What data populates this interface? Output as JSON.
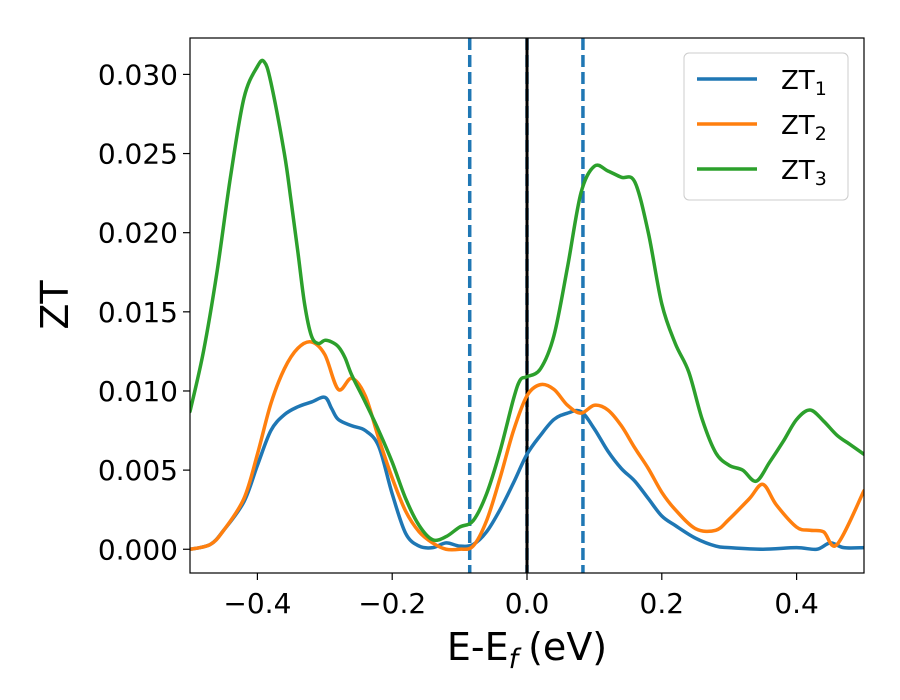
{
  "chart_data": {
    "type": "line",
    "xlabel": "E-E",
    "xlabel_sub": "f",
    "xlabel_unit": "(eV)",
    "ylabel": "ZT",
    "xlim": [
      -0.5,
      0.5
    ],
    "ylim": [
      -0.0015,
      0.0323
    ],
    "xticks": [
      -0.4,
      -0.2,
      0.0,
      0.2,
      0.4
    ],
    "xtick_labels": [
      "−0.4",
      "−0.2",
      "0.0",
      "0.2",
      "0.4"
    ],
    "yticks": [
      0.0,
      0.005,
      0.01,
      0.015,
      0.02,
      0.025,
      0.03
    ],
    "ytick_labels": [
      "0.000",
      "0.005",
      "0.010",
      "0.015",
      "0.020",
      "0.025",
      "0.030"
    ],
    "grid": false,
    "legend_position": "top-right",
    "vlines": [
      {
        "x": -0.085,
        "style": "dashed",
        "color": "#1f77b4"
      },
      {
        "x": 0.0,
        "style": "dashed",
        "color": "#1f77b4"
      },
      {
        "x": 0.0,
        "style": "solid",
        "color": "#000000"
      },
      {
        "x": 0.083,
        "style": "dashed",
        "color": "#1f77b4"
      }
    ],
    "series": [
      {
        "name": "ZT",
        "subscript": "1",
        "color": "#1f77b4",
        "x": [
          -0.5,
          -0.47,
          -0.45,
          -0.42,
          -0.4,
          -0.38,
          -0.36,
          -0.34,
          -0.32,
          -0.3,
          -0.29,
          -0.28,
          -0.26,
          -0.24,
          -0.22,
          -0.2,
          -0.18,
          -0.16,
          -0.14,
          -0.12,
          -0.1,
          -0.08,
          -0.06,
          -0.04,
          -0.02,
          0.0,
          0.02,
          0.04,
          0.06,
          0.08,
          0.1,
          0.12,
          0.14,
          0.16,
          0.18,
          0.2,
          0.22,
          0.25,
          0.28,
          0.3,
          0.35,
          0.4,
          0.43,
          0.45,
          0.47,
          0.5
        ],
        "y": [
          0.0,
          0.0003,
          0.0012,
          0.003,
          0.0053,
          0.0075,
          0.0085,
          0.009,
          0.0093,
          0.0096,
          0.0089,
          0.0082,
          0.0078,
          0.0075,
          0.0065,
          0.0035,
          0.001,
          0.0002,
          0.0001,
          0.0004,
          0.0002,
          0.0003,
          0.0011,
          0.0025,
          0.0042,
          0.006,
          0.0072,
          0.0082,
          0.0086,
          0.0087,
          0.0076,
          0.0062,
          0.0051,
          0.0043,
          0.0032,
          0.0021,
          0.0015,
          0.0007,
          0.0002,
          0.0001,
          0.0,
          0.0001,
          0.0,
          0.0004,
          0.0001,
          0.0001
        ]
      },
      {
        "name": "ZT",
        "subscript": "2",
        "color": "#ff7f0e",
        "x": [
          -0.5,
          -0.47,
          -0.45,
          -0.42,
          -0.4,
          -0.38,
          -0.36,
          -0.34,
          -0.32,
          -0.3,
          -0.28,
          -0.26,
          -0.24,
          -0.22,
          -0.2,
          -0.18,
          -0.16,
          -0.14,
          -0.12,
          -0.1,
          -0.08,
          -0.06,
          -0.04,
          -0.02,
          0.0,
          0.02,
          0.04,
          0.06,
          0.08,
          0.1,
          0.12,
          0.14,
          0.16,
          0.18,
          0.2,
          0.22,
          0.25,
          0.28,
          0.3,
          0.33,
          0.35,
          0.37,
          0.4,
          0.42,
          0.44,
          0.46,
          0.5
        ],
        "y": [
          0.0,
          0.0003,
          0.0012,
          0.0032,
          0.006,
          0.0092,
          0.0114,
          0.0127,
          0.0131,
          0.0123,
          0.0101,
          0.0108,
          0.0097,
          0.007,
          0.0045,
          0.0024,
          0.0011,
          0.0004,
          0.0,
          0.0,
          0.0002,
          0.0018,
          0.0045,
          0.0075,
          0.0097,
          0.0104,
          0.0101,
          0.0091,
          0.0086,
          0.0091,
          0.0088,
          0.0078,
          0.0064,
          0.0051,
          0.0036,
          0.0025,
          0.0013,
          0.0012,
          0.0019,
          0.0032,
          0.0041,
          0.0028,
          0.0014,
          0.0012,
          0.0011,
          0.0003,
          0.0037
        ]
      },
      {
        "name": "ZT",
        "subscript": "3",
        "color": "#2ca02c",
        "x": [
          -0.5,
          -0.48,
          -0.46,
          -0.44,
          -0.42,
          -0.4,
          -0.39,
          -0.38,
          -0.36,
          -0.35,
          -0.34,
          -0.33,
          -0.32,
          -0.31,
          -0.3,
          -0.29,
          -0.28,
          -0.27,
          -0.26,
          -0.24,
          -0.22,
          -0.2,
          -0.18,
          -0.16,
          -0.14,
          -0.12,
          -0.1,
          -0.08,
          -0.06,
          -0.04,
          -0.02,
          -0.01,
          0.0,
          0.02,
          0.04,
          0.06,
          0.08,
          0.1,
          0.12,
          0.14,
          0.16,
          0.18,
          0.2,
          0.22,
          0.24,
          0.26,
          0.28,
          0.3,
          0.32,
          0.34,
          0.36,
          0.38,
          0.4,
          0.42,
          0.44,
          0.46,
          0.48,
          0.5
        ],
        "y": [
          0.0087,
          0.0125,
          0.0175,
          0.0235,
          0.0285,
          0.0305,
          0.0308,
          0.0295,
          0.025,
          0.022,
          0.0188,
          0.0155,
          0.0135,
          0.013,
          0.0132,
          0.0131,
          0.0128,
          0.0121,
          0.011,
          0.0093,
          0.0075,
          0.0055,
          0.0032,
          0.0015,
          0.0006,
          0.0008,
          0.0014,
          0.0018,
          0.0035,
          0.0062,
          0.0095,
          0.0107,
          0.0109,
          0.0114,
          0.0135,
          0.0178,
          0.0225,
          0.0242,
          0.0239,
          0.0235,
          0.0232,
          0.02,
          0.0155,
          0.013,
          0.0112,
          0.0082,
          0.0061,
          0.0053,
          0.005,
          0.0043,
          0.0055,
          0.0068,
          0.0082,
          0.0088,
          0.0081,
          0.0072,
          0.0066,
          0.006
        ]
      }
    ]
  }
}
